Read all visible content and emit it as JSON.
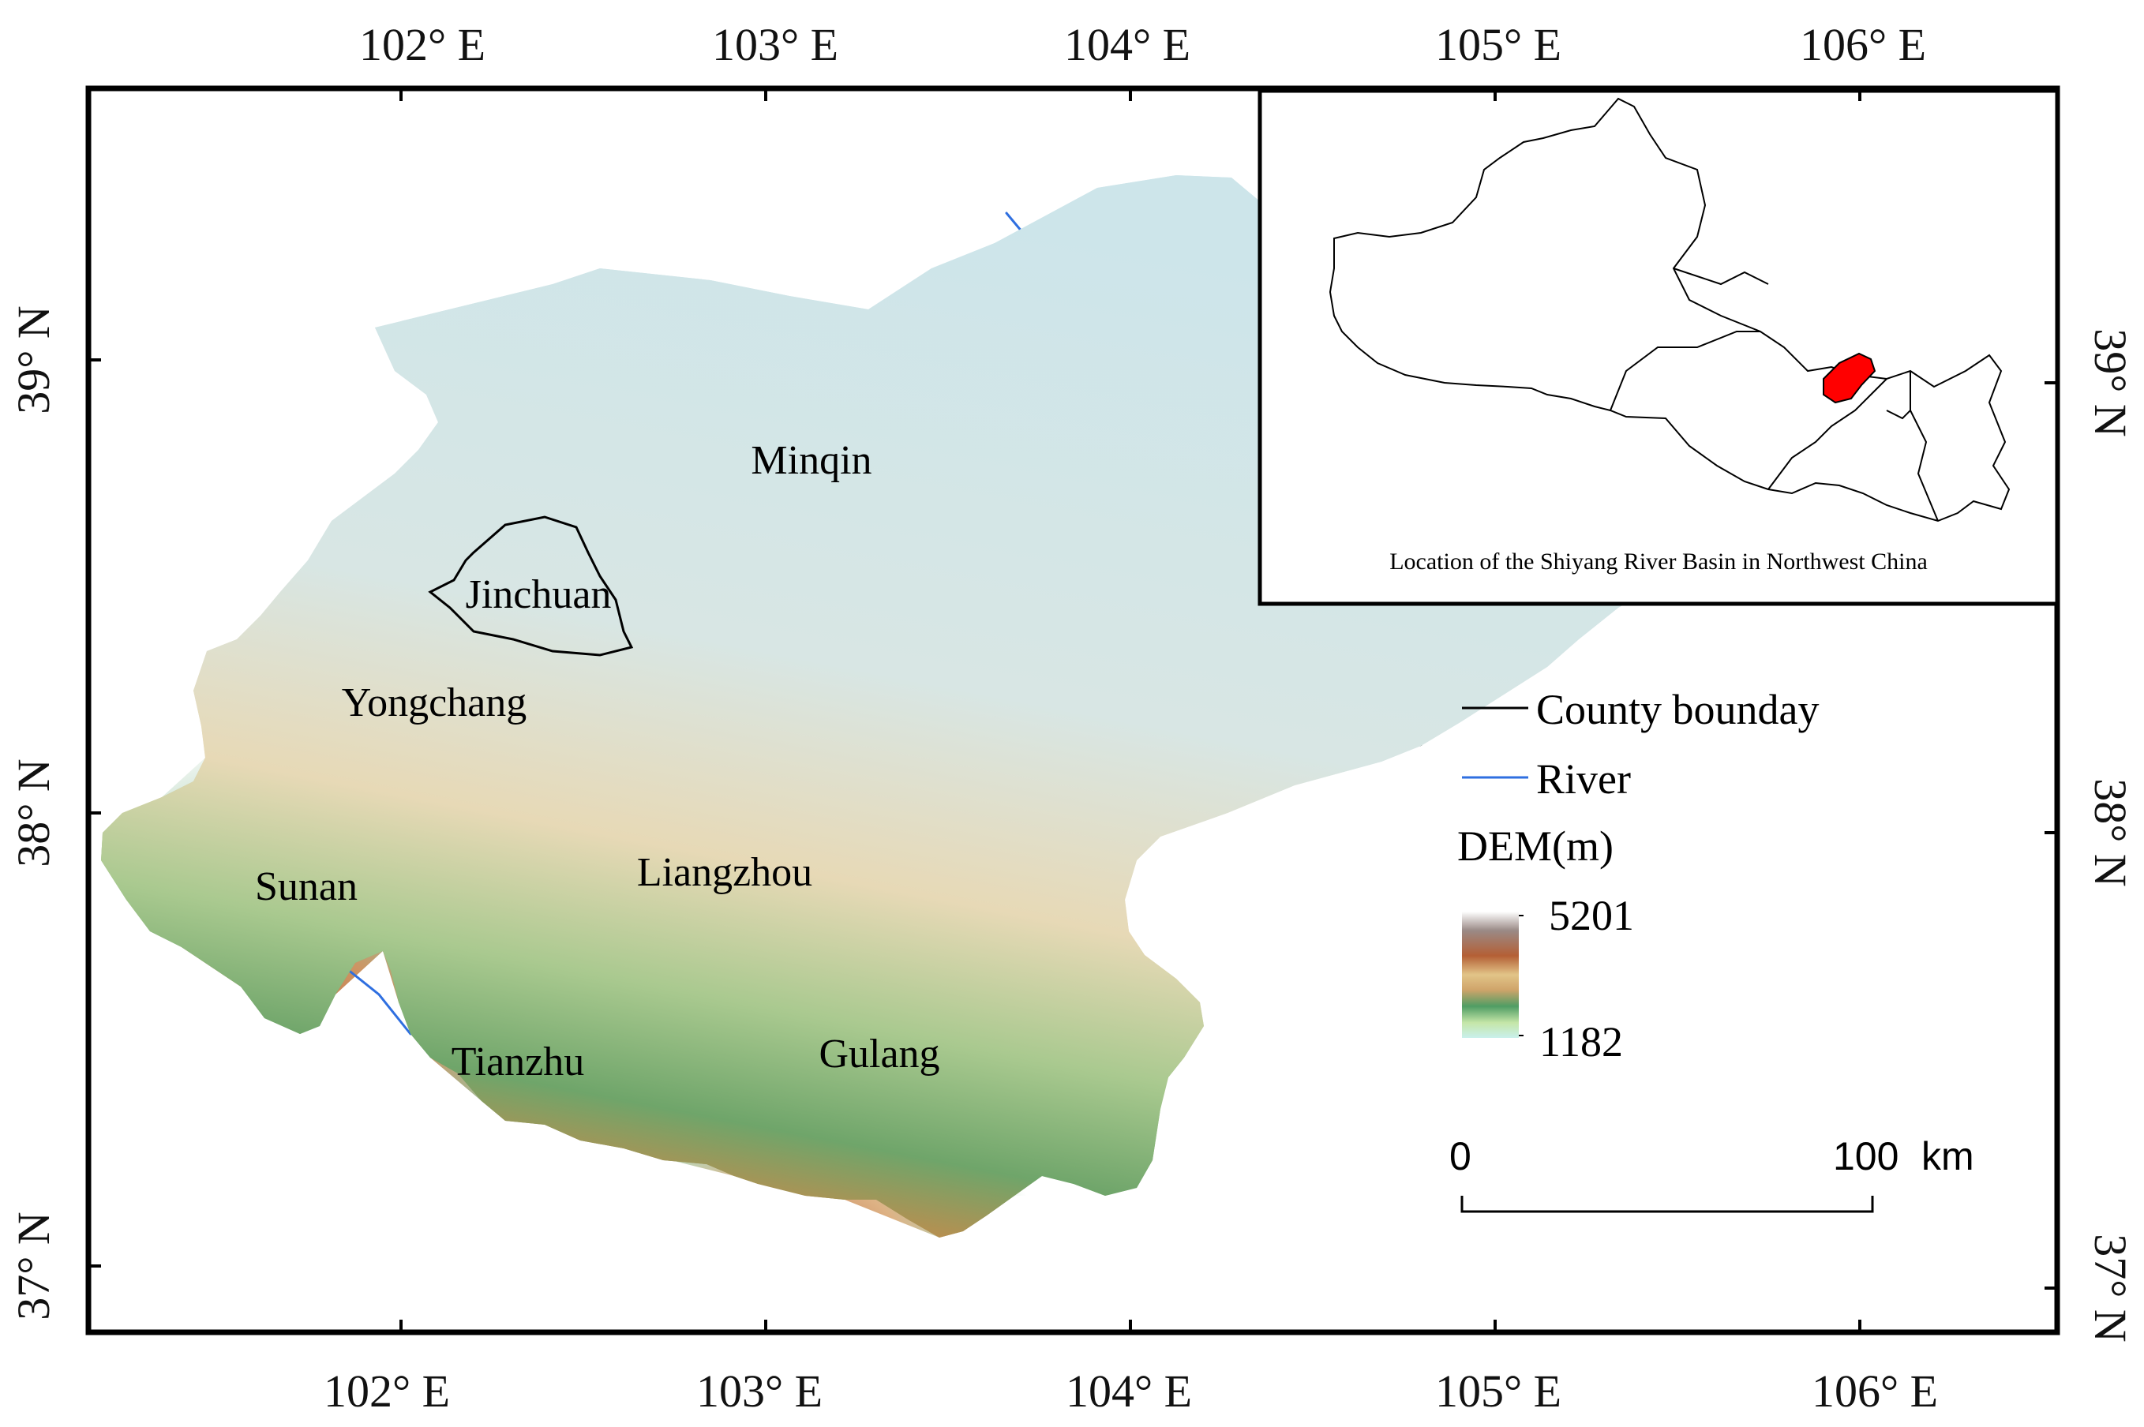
{
  "axes": {
    "top_ticks": [
      "102° E",
      "103° E",
      "104° E",
      "105° E",
      "106° E"
    ],
    "bottom_ticks": [
      "102° E",
      "103° E",
      "104° E",
      "105° E",
      "106° E"
    ],
    "left_ticks": [
      "39° N",
      "38° N",
      "37° N"
    ],
    "right_ticks": [
      "39° N",
      "38° N",
      "37° N"
    ]
  },
  "counties": [
    {
      "name": "Minqin"
    },
    {
      "name": "Jinchuan"
    },
    {
      "name": "Yongchang"
    },
    {
      "name": "Sunan"
    },
    {
      "name": "Liangzhou"
    },
    {
      "name": "Tianzhu"
    },
    {
      "name": "Gulang"
    }
  ],
  "inset": {
    "caption": "Location of the Shiyang River Basin in Northwest China",
    "highlight_color": "#ff0000"
  },
  "legend": {
    "county_boundary": "County bounday",
    "river": "River",
    "dem_title": "DEM(m)",
    "dem_max": "5201",
    "dem_min": "1182",
    "river_color": "#2f6fe0",
    "boundary_color": "#000000"
  },
  "scale_bar": {
    "zero": "0",
    "end": "100",
    "unit": "km"
  }
}
